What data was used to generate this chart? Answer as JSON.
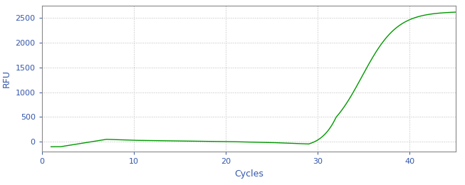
{
  "title": "",
  "xlabel": "Cycles",
  "ylabel": "RFU",
  "xlim": [
    0,
    45
  ],
  "ylim": [
    -200,
    2750
  ],
  "yticks": [
    0,
    500,
    1000,
    1500,
    2000,
    2500
  ],
  "xticks": [
    0,
    10,
    20,
    30,
    40
  ],
  "line_color": "#009900",
  "background_color": "#ffffff",
  "grid_color": "#bbbbbb",
  "tick_label_color": "#3355aa",
  "axis_label_color": "#3355aa",
  "sigmoid_L": 2630,
  "sigmoid_k": 0.52,
  "sigmoid_x0": 34.8,
  "x_start": 1,
  "x_end": 45
}
